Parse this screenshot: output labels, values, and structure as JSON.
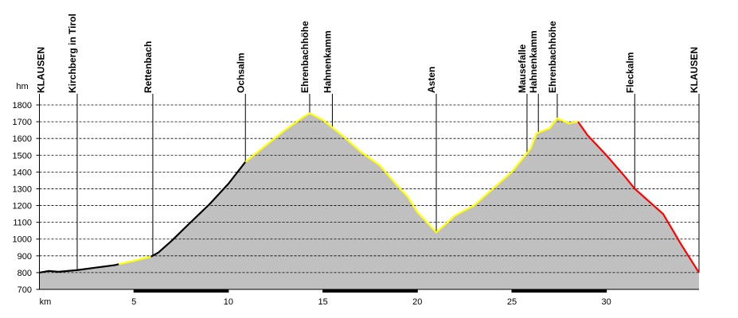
{
  "chart_data": {
    "type": "line",
    "y_unit": "hm",
    "x_unit": "km",
    "xlim": [
      0,
      34.9
    ],
    "ylim": [
      700,
      1800
    ],
    "xticks": [
      5,
      10,
      15,
      20,
      25,
      30
    ],
    "yticks": [
      700,
      800,
      900,
      1000,
      1100,
      1200,
      1300,
      1400,
      1500,
      1600,
      1700,
      1800
    ],
    "grid": true,
    "fill_color": "#c0c0c0",
    "series": [
      {
        "color": "#000000",
        "x": [
          0,
          0.5,
          1,
          2,
          3,
          4,
          4.2
        ],
        "values": [
          800,
          810,
          805,
          815,
          830,
          845,
          850
        ]
      },
      {
        "color": "#ffff00",
        "x": [
          4.2,
          5,
          5.9
        ],
        "values": [
          850,
          870,
          895
        ]
      },
      {
        "color": "#000000",
        "x": [
          5.9,
          6.3,
          7,
          8,
          9,
          10,
          10.9
        ],
        "values": [
          895,
          920,
          990,
          1100,
          1208,
          1330,
          1460
        ]
      },
      {
        "color": "#ffff00",
        "x": [
          10.9,
          12,
          13,
          14,
          14.3,
          15,
          16,
          17,
          18,
          19,
          19.5,
          20,
          21,
          22,
          23,
          24,
          25,
          26,
          26.3,
          27,
          27.4,
          28,
          28.5
        ],
        "values": [
          1460,
          1560,
          1650,
          1730,
          1750,
          1710,
          1620,
          1520,
          1440,
          1310,
          1250,
          1160,
          1040,
          1140,
          1200,
          1300,
          1400,
          1540,
          1630,
          1660,
          1720,
          1690,
          1700
        ]
      },
      {
        "color": "#ff0000",
        "x": [
          28.5,
          29,
          30,
          31,
          31.5,
          32,
          33,
          34,
          34.9
        ],
        "values": [
          1700,
          1620,
          1500,
          1370,
          1300,
          1250,
          1150,
          960,
          800
        ]
      }
    ],
    "waypoints": {
      "labels": [
        "KLAUSEN",
        "Kirchberg in Tirol",
        "Rettenbach",
        "Ochsalm",
        "Ehrenbachhöhe",
        "Hahnenkamm",
        "Asten",
        "Mausefalle",
        "Hahnenkamm",
        "Ehrenbachhöhe",
        "Fleckalm",
        "KLAUSEN"
      ],
      "x": [
        0,
        2,
        6,
        10.9,
        14.3,
        15.5,
        21,
        25.8,
        26.4,
        27.4,
        31.5,
        34.9
      ]
    }
  }
}
